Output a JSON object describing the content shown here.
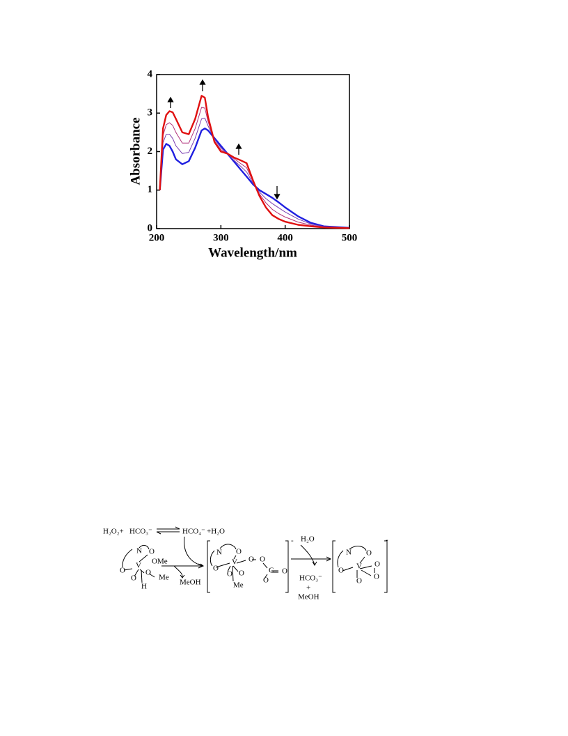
{
  "chart_data": {
    "type": "line",
    "xlabel": "Wavelength/nm",
    "ylabel": "Absorbance",
    "x": [
      205,
      210,
      215,
      220,
      225,
      230,
      240,
      250,
      260,
      270,
      275,
      280,
      290,
      300,
      310,
      320,
      330,
      340,
      350,
      360,
      370,
      380,
      390,
      400,
      420,
      440,
      460,
      500
    ],
    "series": [
      {
        "color": "#1f1fe0",
        "values": [
          1.0,
          2.05,
          2.2,
          2.15,
          2.0,
          1.8,
          1.67,
          1.75,
          2.1,
          2.55,
          2.6,
          2.55,
          2.35,
          2.15,
          1.95,
          1.75,
          1.55,
          1.35,
          1.15,
          1.0,
          0.9,
          0.8,
          0.68,
          0.55,
          0.32,
          0.15,
          0.06,
          0.02
        ]
      },
      {
        "color": "#7a3fb0",
        "values": [
          1.0,
          2.23,
          2.45,
          2.45,
          2.34,
          2.15,
          1.95,
          1.98,
          2.35,
          2.85,
          2.87,
          2.67,
          2.32,
          2.1,
          1.95,
          1.78,
          1.63,
          1.47,
          1.18,
          0.95,
          0.78,
          0.65,
          0.54,
          0.43,
          0.25,
          0.12,
          0.05,
          0.02
        ]
      },
      {
        "color": "#b0307a",
        "values": [
          1.0,
          2.42,
          2.7,
          2.75,
          2.68,
          2.5,
          2.22,
          2.22,
          2.6,
          3.15,
          3.13,
          2.78,
          2.28,
          2.05,
          1.95,
          1.82,
          1.7,
          1.58,
          1.22,
          0.9,
          0.67,
          0.5,
          0.39,
          0.3,
          0.17,
          0.09,
          0.04,
          0.01
        ]
      },
      {
        "color": "#e01010",
        "values": [
          1.0,
          2.6,
          2.95,
          3.05,
          3.02,
          2.85,
          2.5,
          2.45,
          2.85,
          3.45,
          3.4,
          2.9,
          2.25,
          2.0,
          1.95,
          1.85,
          1.78,
          1.7,
          1.25,
          0.85,
          0.55,
          0.35,
          0.25,
          0.18,
          0.1,
          0.06,
          0.03,
          0.01
        ]
      }
    ],
    "xlim": [
      200,
      500
    ],
    "xticks": [
      200,
      300,
      400,
      500
    ],
    "ylim": [
      0,
      4
    ],
    "yticks": [
      0,
      1,
      2,
      3,
      4
    ]
  },
  "scheme": {
    "labels": [
      "H₂O₂+",
      "HCO₃⁻",
      "HCO₄⁻",
      "+H₂O",
      "N",
      "O",
      "O",
      "V",
      "OMe",
      "O",
      "O",
      "Me",
      "H",
      "MeOH",
      "N",
      "O",
      "O",
      "V",
      "O",
      "O",
      "Me",
      "O",
      "O",
      "C",
      "O",
      "O",
      "-",
      "H₂O",
      "HCO₃⁻",
      "+",
      "MeOH",
      "N",
      "O",
      "O",
      "V",
      "O",
      "O",
      "O",
      "-"
    ]
  }
}
